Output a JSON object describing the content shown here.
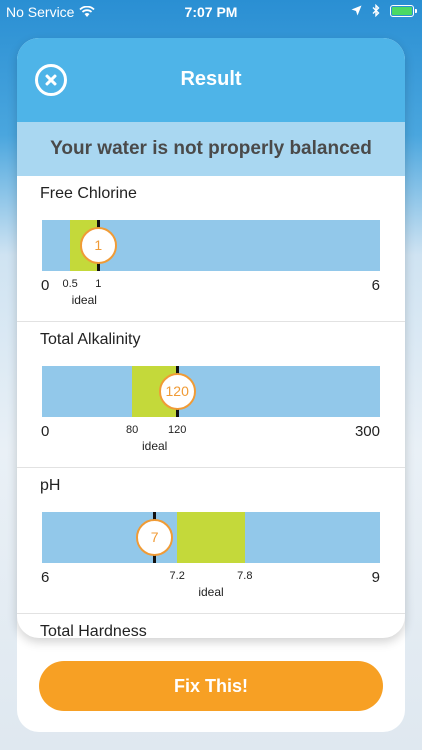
{
  "status": {
    "carrier": "No Service",
    "time": "7:07 PM"
  },
  "header": {
    "title": "Result"
  },
  "banner": "Your water is not properly balanced",
  "metrics": [
    {
      "name": "Free Chlorine",
      "min": 0,
      "max": 6,
      "min_label": "0",
      "max_label": "6",
      "ideal_low": 0.5,
      "ideal_high": 1,
      "ideal_low_label": "0.5",
      "ideal_high_label": "1",
      "value": 1,
      "value_label": "1",
      "ideal_text": "ideal"
    },
    {
      "name": "Total Alkalinity",
      "min": 0,
      "max": 300,
      "min_label": "0",
      "max_label": "300",
      "ideal_low": 80,
      "ideal_high": 120,
      "ideal_low_label": "80",
      "ideal_high_label": "120",
      "value": 120,
      "value_label": "120",
      "ideal_text": "ideal"
    },
    {
      "name": "pH",
      "min": 6,
      "max": 9,
      "min_label": "6",
      "max_label": "9",
      "ideal_low": 7.2,
      "ideal_high": 7.8,
      "ideal_low_label": "7.2",
      "ideal_high_label": "7.8",
      "value": 7,
      "value_label": "7",
      "ideal_text": "ideal"
    }
  ],
  "next_metric": {
    "name": "Total Hardness"
  },
  "fix_button": {
    "label": "Fix This!"
  },
  "colors": {
    "accent": "#4eb4e8",
    "bar": "#92c8ea",
    "ideal": "#c4d93a",
    "marker": "#f09b36",
    "button": "#f7a024"
  }
}
